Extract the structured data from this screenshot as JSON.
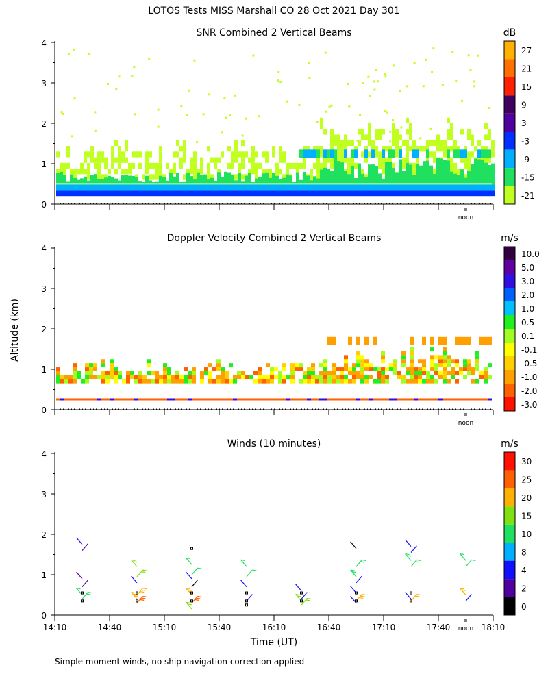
{
  "title": "LOTOS Tests MISS Marshall CO  28 Oct 2021 Day 301",
  "footer": "Simple moment winds, no ship navigation correction applied",
  "ylabel": "Altitude (km)",
  "xlabel": "Time (UT)",
  "noon_label": "noon",
  "yticks": [
    "0",
    "1",
    "2",
    "3",
    "4"
  ],
  "xticks": [
    "14:10",
    "14:40",
    "15:10",
    "15:40",
    "16:10",
    "16:40",
    "17:10",
    "17:40",
    "18:10"
  ],
  "chart_data": [
    {
      "type": "heatmap",
      "title": "SNR Combined 2 Vertical Beams",
      "unit": "dB",
      "ylim": [
        0,
        4
      ],
      "xlim": [
        "14:10",
        "18:10"
      ],
      "colorbar": {
        "labels": [
          "27",
          "21",
          "15",
          "9",
          "3",
          "-3",
          "-9",
          "-15",
          "-21"
        ],
        "colors": [
          "#ffb000",
          "#ff7000",
          "#ff2000",
          "#400060",
          "#5000a0",
          "#0030ff",
          "#00b0ff",
          "#20e060",
          "#c0ff20"
        ]
      },
      "layers": [
        {
          "name": "strong surface layer",
          "altitude_km": [
            0.2,
            0.35
          ],
          "db": [
            3,
            -3
          ]
        },
        {
          "name": "mid layer",
          "altitude_km": [
            0.35,
            0.6
          ],
          "db": [
            -9,
            -15
          ]
        },
        {
          "name": "weak echo",
          "altitude_km": [
            0.6,
            2.5
          ],
          "db": [
            -21,
            -15
          ]
        }
      ]
    },
    {
      "type": "heatmap",
      "title": "Doppler Velocity Combined 2 Vertical Beams",
      "unit": "m/s",
      "ylim": [
        0,
        4
      ],
      "xlim": [
        "14:10",
        "18:10"
      ],
      "colorbar": {
        "labels": [
          "10.0",
          "5.0",
          "3.0",
          "2.0",
          "1.0",
          "0.5",
          "0.1",
          "-0.1",
          "-0.5",
          "-1.0",
          "-2.0",
          "-3.0"
        ],
        "colors": [
          "#300040",
          "#6000a0",
          "#3010e0",
          "#0060ff",
          "#00c0ff",
          "#20f020",
          "#a0ff20",
          "#ffff00",
          "#ffd000",
          "#ffa000",
          "#ff6000",
          "#ff1000"
        ]
      },
      "layers": [
        {
          "name": "lower layer",
          "altitude_km": [
            0.2,
            0.3
          ],
          "ms": [
            -2.0,
            -3.0
          ]
        },
        {
          "name": "main layer",
          "altitude_km": [
            0.6,
            1.2
          ],
          "ms": [
            -0.5,
            -1.0
          ]
        }
      ]
    },
    {
      "type": "wind-barbs",
      "title": "Winds (10 minutes)",
      "unit": "m/s",
      "ylim": [
        0,
        4
      ],
      "xlim": [
        "14:10",
        "18:10"
      ],
      "colorbar": {
        "labels": [
          "30",
          "25",
          "20",
          "15",
          "10",
          "8",
          "4",
          "2",
          "0"
        ],
        "colors": [
          "#ff1000",
          "#ff6000",
          "#ffb000",
          "#80e010",
          "#20e060",
          "#00b0ff",
          "#1010ff",
          "#5000a0",
          "#000000"
        ]
      },
      "profiles": [
        {
          "time": "14:25",
          "barbs": [
            {
              "alt": 1.75,
              "speed": 4
            },
            {
              "alt": 1.6,
              "speed": 2
            },
            {
              "alt": 0.9,
              "speed": 3
            },
            {
              "alt": 0.7,
              "speed": 3
            },
            {
              "alt": 0.5,
              "speed": 12
            },
            {
              "alt": 0.4,
              "speed": 14
            }
          ]
        },
        {
          "time": "14:55",
          "barbs": [
            {
              "alt": 1.2,
              "speed": 16
            },
            {
              "alt": 0.95,
              "speed": 17
            },
            {
              "alt": 0.8,
              "speed": 4
            },
            {
              "alt": 0.5,
              "speed": 22
            },
            {
              "alt": 0.4,
              "speed": 23
            },
            {
              "alt": 0.3,
              "speed": 25
            }
          ]
        },
        {
          "time": "15:25",
          "barbs": [
            {
              "alt": 1.25,
              "speed": 12
            },
            {
              "alt": 1.0,
              "speed": 13
            },
            {
              "alt": 0.9,
              "speed": 4
            },
            {
              "alt": 0.7,
              "speed": 0
            },
            {
              "alt": 0.5,
              "speed": 22
            },
            {
              "alt": 0.3,
              "speed": 25
            },
            {
              "alt": 0.15,
              "speed": 18
            }
          ]
        },
        {
          "time": "15:55",
          "barbs": [
            {
              "alt": 1.2,
              "speed": 12
            },
            {
              "alt": 0.95,
              "speed": 13
            },
            {
              "alt": 0.7,
              "speed": 4
            },
            {
              "alt": 0.35,
              "speed": 4
            }
          ]
        },
        {
          "time": "16:25",
          "barbs": [
            {
              "alt": 0.6,
              "speed": 4
            },
            {
              "alt": 0.4,
              "speed": 4
            },
            {
              "alt": 0.35,
              "speed": 18
            },
            {
              "alt": 0.25,
              "speed": 18
            }
          ]
        },
        {
          "time": "16:55",
          "barbs": [
            {
              "alt": 1.65,
              "speed": 0
            },
            {
              "alt": 1.2,
              "speed": 14
            },
            {
              "alt": 0.95,
              "speed": 14
            },
            {
              "alt": 0.8,
              "speed": 4
            },
            {
              "alt": 0.55,
              "speed": 4
            },
            {
              "alt": 0.35,
              "speed": 22
            },
            {
              "alt": 0.3,
              "speed": 4
            }
          ]
        },
        {
          "time": "17:25",
          "barbs": [
            {
              "alt": 1.7,
              "speed": 4
            },
            {
              "alt": 1.55,
              "speed": 4
            },
            {
              "alt": 1.35,
              "speed": 14
            },
            {
              "alt": 1.2,
              "speed": 14
            },
            {
              "alt": 0.4,
              "speed": 4
            },
            {
              "alt": 0.35,
              "speed": 20
            }
          ]
        },
        {
          "time": "17:55",
          "barbs": [
            {
              "alt": 1.35,
              "speed": 13
            },
            {
              "alt": 1.2,
              "speed": 13
            },
            {
              "alt": 0.5,
              "speed": 20
            },
            {
              "alt": 0.35,
              "speed": 4
            }
          ]
        }
      ],
      "markers": [
        {
          "time": "14:25",
          "alt": 0.55
        },
        {
          "time": "14:25",
          "alt": 0.35
        },
        {
          "time": "14:55",
          "alt": 0.55
        },
        {
          "time": "14:55",
          "alt": 0.35
        },
        {
          "time": "15:25",
          "alt": 1.65
        },
        {
          "time": "15:25",
          "alt": 0.55
        },
        {
          "time": "15:25",
          "alt": 0.35
        },
        {
          "time": "15:55",
          "alt": 0.55
        },
        {
          "time": "15:55",
          "alt": 0.35
        },
        {
          "time": "15:55",
          "alt": 0.25
        },
        {
          "time": "16:25",
          "alt": 0.55
        },
        {
          "time": "16:25",
          "alt": 0.35
        },
        {
          "time": "16:55",
          "alt": 0.55
        },
        {
          "time": "16:55",
          "alt": 0.35
        },
        {
          "time": "17:25",
          "alt": 0.55
        },
        {
          "time": "17:25",
          "alt": 0.35
        }
      ]
    }
  ]
}
